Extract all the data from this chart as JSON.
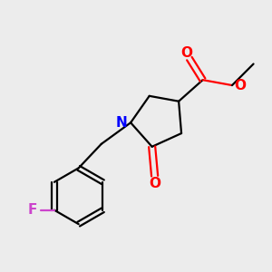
{
  "bg_color": "#ececec",
  "bond_color": "#000000",
  "N_color": "#0000ff",
  "O_color": "#ff0000",
  "F_color": "#cc44cc",
  "line_width": 1.6,
  "figsize": [
    3.0,
    3.0
  ],
  "dpi": 100,
  "xlim": [
    0,
    10
  ],
  "ylim": [
    0,
    10
  ]
}
